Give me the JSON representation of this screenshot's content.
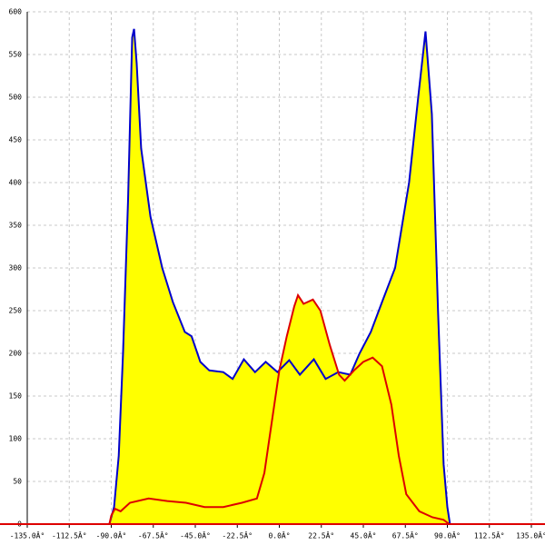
{
  "chart_data": {
    "type": "area",
    "xlim": [
      -135,
      135
    ],
    "ylim": [
      0,
      600
    ],
    "xticks": [
      {
        "value": -135,
        "label": "-135.0Â°"
      },
      {
        "value": -112.5,
        "label": "-112.5Â°"
      },
      {
        "value": -90,
        "label": "-90.0Â°"
      },
      {
        "value": -67.5,
        "label": "-67.5Â°"
      },
      {
        "value": -45,
        "label": "-45.0Â°"
      },
      {
        "value": -22.5,
        "label": "-22.5Â°"
      },
      {
        "value": 0,
        "label": "0.0Â°"
      },
      {
        "value": 22.5,
        "label": "22.5Â°"
      },
      {
        "value": 45,
        "label": "45.0Â°"
      },
      {
        "value": 67.5,
        "label": "67.5Â°"
      },
      {
        "value": 90,
        "label": "90.0Â°"
      },
      {
        "value": 112.5,
        "label": "112.5Â°"
      },
      {
        "value": 135,
        "label": "135.0Â°"
      }
    ],
    "yticks": [
      0,
      50,
      100,
      150,
      200,
      250,
      300,
      350,
      400,
      450,
      500,
      550,
      600
    ],
    "grid": true,
    "fill": "#ffff00",
    "series": [
      {
        "color": "#0000cc",
        "x": [
          -91,
          -88.5,
          -86,
          -83.7,
          -81,
          -78.8,
          -77.8,
          -76.4,
          -74,
          -69,
          -62.7,
          -57,
          -50.6,
          -47,
          -42.3,
          -37.5,
          -30,
          -25,
          -19,
          -13,
          -7.3,
          -1,
          5.3,
          11,
          18.5,
          24.8,
          31.6,
          38,
          43,
          49,
          55,
          62,
          69.5,
          74.4,
          78.3,
          81.7,
          85,
          88,
          90,
          91.4
        ],
        "values": [
          0,
          20,
          80,
          200,
          380,
          570,
          580,
          540,
          440,
          360,
          300,
          260,
          225,
          220,
          190,
          180,
          178,
          170,
          193,
          178,
          190,
          178,
          192,
          175,
          193,
          170,
          178,
          175,
          200,
          225,
          260,
          300,
          400,
          500,
          577,
          480,
          250,
          70,
          20,
          0
        ]
      },
      {
        "color": "#dd0000",
        "x": [
          -91,
          -90,
          -88,
          -85,
          -80,
          -70,
          -60,
          -50,
          -40,
          -30,
          -20,
          -12,
          -8,
          -4,
          0,
          4,
          8,
          10,
          13,
          18,
          22,
          27,
          32,
          35,
          40,
          45,
          50,
          55,
          60,
          64,
          68,
          75,
          82,
          88,
          91
        ],
        "values": [
          0,
          10,
          18,
          15,
          25,
          30,
          27,
          25,
          20,
          20,
          25,
          30,
          60,
          120,
          180,
          220,
          255,
          268,
          258,
          263,
          250,
          210,
          175,
          168,
          180,
          190,
          195,
          185,
          140,
          80,
          35,
          15,
          8,
          5,
          0
        ]
      }
    ]
  }
}
